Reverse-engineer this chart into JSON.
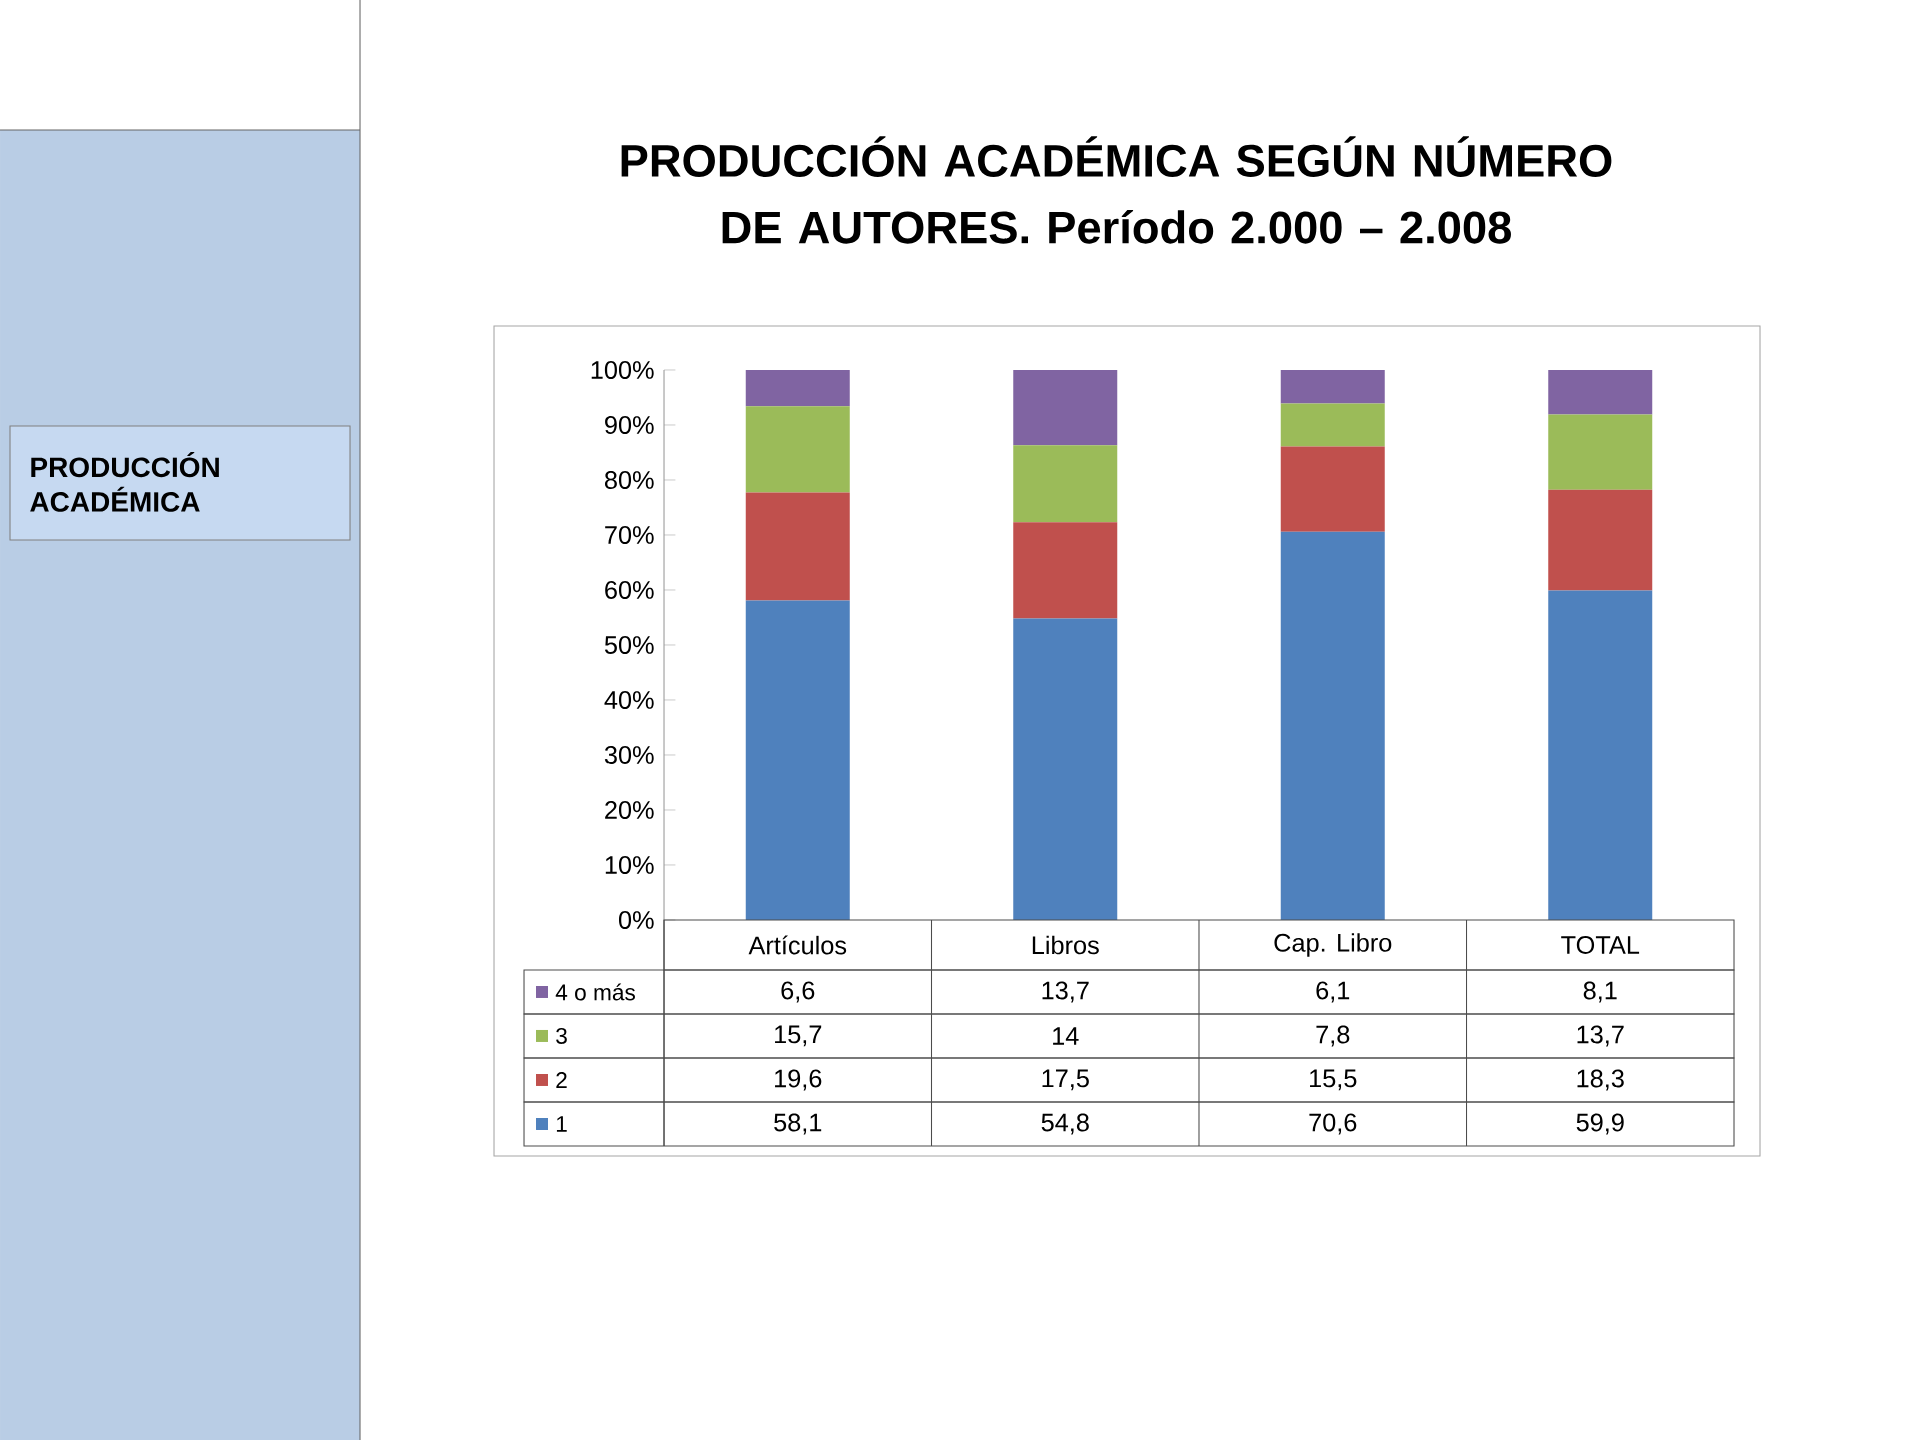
{
  "chart_data": {
    "type": "bar",
    "stacked": true,
    "title": "PRODUCCIÓN ACADÉMICA SEGÚN NÚMERO DE AUTORES. Período 2.000 – 2.008",
    "annotations": [
      "PRODUCCIÓN ACADÉMICA"
    ],
    "categories": [
      "Artículos",
      "Libros",
      "Cap. Libro",
      "TOTAL"
    ],
    "series": [
      {
        "name": "1",
        "color": "#4f81bd",
        "values": [
          58.1,
          54.8,
          70.6,
          59.9
        ],
        "value_labels": [
          "58,1",
          "54,8",
          "70,6",
          "59,9"
        ]
      },
      {
        "name": "2",
        "color": "#c0504d",
        "values": [
          19.6,
          17.5,
          15.5,
          18.3
        ],
        "value_labels": [
          "19,6",
          "17,5",
          "15,5",
          "18,3"
        ]
      },
      {
        "name": "3",
        "color": "#9bbb59",
        "values": [
          15.7,
          14,
          7.8,
          13.7
        ],
        "value_labels": [
          "15,7",
          "14",
          "7,8",
          "13,7"
        ]
      },
      {
        "name": "4 o más",
        "color": "#8064a2",
        "values": [
          6.6,
          13.7,
          6.1,
          8.1
        ],
        "value_labels": [
          "6,6",
          "13,7",
          "6,1",
          "8,1"
        ]
      }
    ],
    "ylim": [
      0,
      100
    ],
    "yticks": [
      {
        "value": 0,
        "label": "0%"
      },
      {
        "value": 10,
        "label": "10%"
      },
      {
        "value": 20,
        "label": "20%"
      },
      {
        "value": 30,
        "label": "30%"
      },
      {
        "value": 40,
        "label": "40%"
      },
      {
        "value": 50,
        "label": "50%"
      },
      {
        "value": 60,
        "label": "60%"
      },
      {
        "value": 70,
        "label": "70%"
      },
      {
        "value": 80,
        "label": "80%"
      },
      {
        "value": 90,
        "label": "90%"
      },
      {
        "value": 100,
        "label": "100%"
      }
    ],
    "grid": false,
    "legend": "bottom"
  }
}
